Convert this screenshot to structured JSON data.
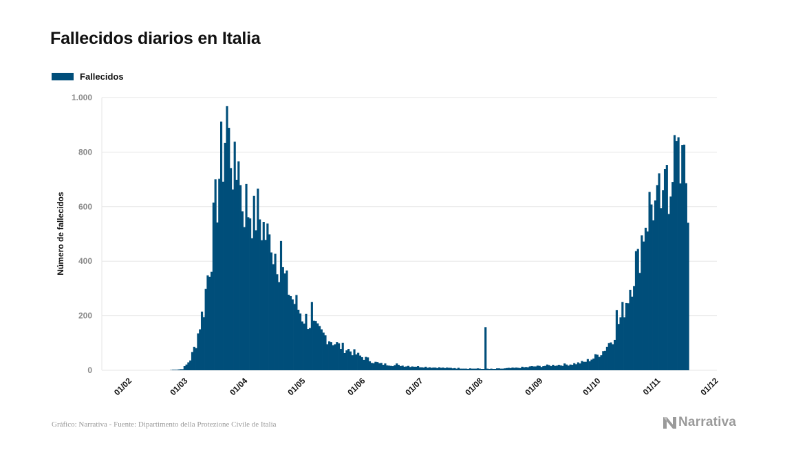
{
  "chart_data": {
    "type": "bar",
    "title": "Fallecidos diarios en Italia",
    "ylabel": "Número de fallecidos",
    "xlabel": "",
    "ylim": [
      0,
      1000
    ],
    "yticks": [
      0,
      200,
      400,
      600,
      800,
      1000
    ],
    "ytick_labels": [
      "0",
      "200",
      "400",
      "600",
      "800",
      "1.000"
    ],
    "xtick_labels": [
      "01/02",
      "01/03",
      "01/04",
      "01/05",
      "01/06",
      "01/07",
      "01/08",
      "01/09",
      "01/10",
      "01/11",
      "01/12"
    ],
    "start_label": "01/02",
    "grid": true,
    "legend_position": "top-left",
    "series": [
      {
        "name": "Fallecidos",
        "color": "#004e7a",
        "keyframes": [
          [
            0,
            0
          ],
          [
            22,
            0
          ],
          [
            23,
            1
          ],
          [
            27,
            3
          ],
          [
            29,
            5
          ],
          [
            31,
            20
          ],
          [
            33,
            40
          ],
          [
            36,
            100
          ],
          [
            38,
            170
          ],
          [
            40,
            230
          ],
          [
            42,
            350
          ],
          [
            44,
            450
          ],
          [
            46,
            580
          ],
          [
            48,
            720
          ],
          [
            50,
            800
          ],
          [
            52,
            930
          ],
          [
            54,
            820
          ],
          [
            56,
            730
          ],
          [
            58,
            700
          ],
          [
            60,
            630
          ],
          [
            63,
            600
          ],
          [
            66,
            590
          ],
          [
            69,
            560
          ],
          [
            72,
            500
          ],
          [
            75,
            450
          ],
          [
            78,
            430
          ],
          [
            81,
            350
          ],
          [
            84,
            300
          ],
          [
            86,
            260
          ],
          [
            88,
            240
          ],
          [
            91,
            200
          ],
          [
            94,
            180
          ],
          [
            98,
            150
          ],
          [
            102,
            130
          ],
          [
            106,
            110
          ],
          [
            110,
            90
          ],
          [
            115,
            75
          ],
          [
            120,
            55
          ],
          [
            125,
            40
          ],
          [
            130,
            25
          ],
          [
            140,
            18
          ],
          [
            150,
            14
          ],
          [
            160,
            10
          ],
          [
            170,
            8
          ],
          [
            180,
            6
          ],
          [
            190,
            5
          ],
          [
            200,
            8
          ],
          [
            210,
            13
          ],
          [
            220,
            18
          ],
          [
            230,
            22
          ],
          [
            237,
            30
          ],
          [
            242,
            45
          ],
          [
            247,
            70
          ],
          [
            252,
            120
          ],
          [
            256,
            190
          ],
          [
            260,
            280
          ],
          [
            263,
            370
          ],
          [
            266,
            450
          ],
          [
            269,
            560
          ],
          [
            272,
            610
          ],
          [
            275,
            580
          ],
          [
            278,
            650
          ],
          [
            281,
            700
          ],
          [
            283,
            760
          ],
          [
            285,
            810
          ],
          [
            287,
            760
          ],
          [
            289,
            700
          ],
          [
            291,
            600
          ]
        ],
        "overrides": [
          [
            52,
            969
          ],
          [
            53,
            889
          ],
          [
            56,
            838
          ],
          [
            58,
            766
          ],
          [
            66,
            640
          ],
          [
            75,
            432
          ],
          [
            80,
            474
          ],
          [
            83,
            366
          ],
          [
            96,
            250
          ],
          [
            130,
            30
          ],
          [
            140,
            25
          ],
          [
            186,
            158
          ],
          [
            254,
            221
          ],
          [
            265,
            445
          ],
          [
            273,
            550
          ],
          [
            278,
            660
          ],
          [
            279,
            738
          ],
          [
            280,
            753
          ],
          [
            283,
            690
          ],
          [
            286,
            854
          ],
          [
            288,
            826
          ],
          [
            289,
            827
          ],
          [
            290,
            686
          ],
          [
            291,
            541
          ]
        ],
        "days_total": 292
      }
    ]
  },
  "footer": {
    "source": "Gráfico: Narrativa - Fuente: Dipartimento della Protezione Civile de Italia",
    "brand": "Narrativa"
  },
  "colors": {
    "bar": "#004e7a",
    "grid": "#e6e6e6",
    "tick_label": "#8a8a8a",
    "axis_label": "#111111"
  }
}
